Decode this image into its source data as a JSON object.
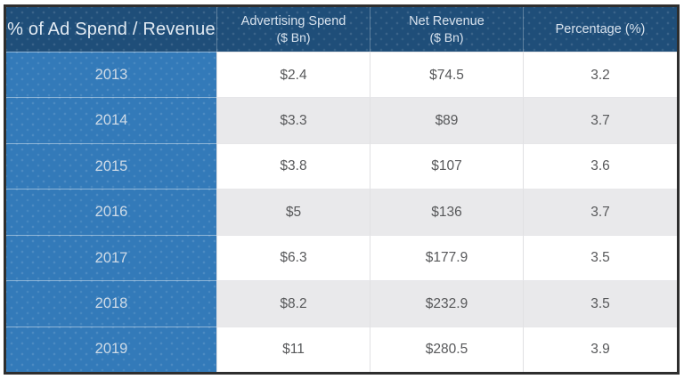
{
  "table": {
    "corner_label": "% of Ad Spend / Revenue",
    "columns": [
      {
        "label": "Advertising Spend",
        "sub": "($ Bn)"
      },
      {
        "label": "Net Revenue",
        "sub": "($ Bn)"
      },
      {
        "label": "Percentage (%)",
        "sub": ""
      }
    ],
    "rows": [
      {
        "year": "2013",
        "ad_spend": "$2.4",
        "net_revenue": "$74.5",
        "percentage": "3.2"
      },
      {
        "year": "2014",
        "ad_spend": "$3.3",
        "net_revenue": "$89",
        "percentage": "3.7"
      },
      {
        "year": "2015",
        "ad_spend": "$3.8",
        "net_revenue": "$107",
        "percentage": "3.6"
      },
      {
        "year": "2016",
        "ad_spend": "$5",
        "net_revenue": "$136",
        "percentage": "3.7"
      },
      {
        "year": "2017",
        "ad_spend": "$6.3",
        "net_revenue": "$177.9",
        "percentage": "3.5"
      },
      {
        "year": "2018",
        "ad_spend": "$8.2",
        "net_revenue": "$232.9",
        "percentage": "3.5"
      },
      {
        "year": "2019",
        "ad_spend": "$11",
        "net_revenue": "$280.5",
        "percentage": "3.9"
      }
    ]
  },
  "colors": {
    "header_bg": "#1f4e79",
    "year_bg": "#337ab9",
    "alt_row_bg": "#e9e9eb",
    "outer_border": "#2e2e2e",
    "header_text": "#d9e3ee",
    "data_text": "#57585a"
  },
  "chart_data": {
    "type": "table",
    "title": "% of Ad Spend / Revenue",
    "columns": [
      "% of Ad Spend / Revenue",
      "Advertising Spend ($ Bn)",
      "Net Revenue ($ Bn)",
      "Percentage (%)"
    ],
    "rows": [
      [
        "2013",
        2.4,
        74.5,
        3.2
      ],
      [
        "2014",
        3.3,
        89,
        3.7
      ],
      [
        "2015",
        3.8,
        107,
        3.6
      ],
      [
        "2016",
        5,
        136,
        3.7
      ],
      [
        "2017",
        6.3,
        177.9,
        3.5
      ],
      [
        "2018",
        8.2,
        232.9,
        3.5
      ],
      [
        "2019",
        11,
        280.5,
        3.9
      ]
    ]
  }
}
